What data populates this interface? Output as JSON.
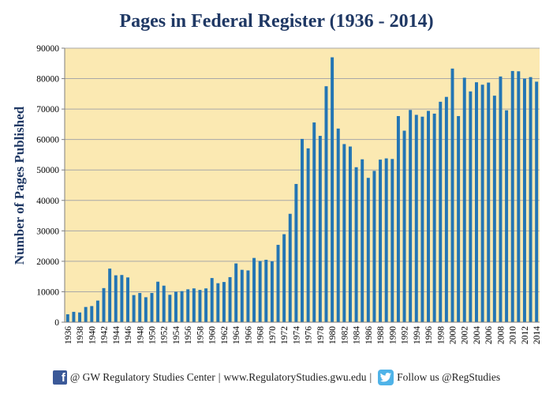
{
  "chart_data": {
    "type": "bar",
    "title": "Pages in Federal Register (1936 - 2014)",
    "xlabel": "",
    "ylabel": "Number of Pages Published",
    "ylim": [
      0,
      90000
    ],
    "yticks": [
      0,
      10000,
      20000,
      30000,
      40000,
      50000,
      60000,
      70000,
      80000,
      90000
    ],
    "categories": [
      1936,
      1937,
      1938,
      1939,
      1940,
      1941,
      1942,
      1943,
      1944,
      1945,
      1946,
      1947,
      1948,
      1949,
      1950,
      1951,
      1952,
      1953,
      1954,
      1955,
      1956,
      1957,
      1958,
      1959,
      1960,
      1961,
      1962,
      1963,
      1964,
      1965,
      1966,
      1967,
      1968,
      1969,
      1970,
      1971,
      1972,
      1973,
      1974,
      1975,
      1976,
      1977,
      1978,
      1979,
      1980,
      1981,
      1982,
      1983,
      1984,
      1985,
      1986,
      1987,
      1988,
      1989,
      1990,
      1991,
      1992,
      1993,
      1994,
      1995,
      1996,
      1997,
      1998,
      1999,
      2000,
      2001,
      2002,
      2003,
      2004,
      2005,
      2006,
      2007,
      2008,
      2009,
      2010,
      2011,
      2012,
      2013,
      2014
    ],
    "xtick_labels": [
      "1936",
      "1938",
      "1940",
      "1942",
      "1944",
      "1946",
      "1948",
      "1950",
      "1952",
      "1954",
      "1956",
      "1958",
      "1960",
      "1962",
      "1964",
      "1966",
      "1968",
      "1970",
      "1972",
      "1974",
      "1976",
      "1978",
      "1980",
      "1982",
      "1984",
      "1986",
      "1988",
      "1990",
      "1992",
      "1994",
      "1996",
      "1998",
      "2000",
      "2002",
      "2004",
      "2006",
      "2008",
      "2010",
      "2012",
      "2014"
    ],
    "values": [
      2600,
      3400,
      3200,
      5000,
      5300,
      7100,
      11200,
      17600,
      15400,
      15500,
      14700,
      8900,
      9600,
      8200,
      9600,
      13300,
      12000,
      9000,
      10000,
      10200,
      10800,
      11100,
      10600,
      11100,
      14500,
      12800,
      13200,
      14800,
      19300,
      17200,
      17000,
      21100,
      20100,
      20500,
      20000,
      25400,
      28900,
      35600,
      45400,
      60200,
      57100,
      65600,
      61200,
      77500,
      87000,
      63600,
      58500,
      57700,
      50900,
      53500,
      47400,
      49700,
      53400,
      53800,
      53600,
      67700,
      62900,
      69700,
      68100,
      67500,
      69400,
      68500,
      72400,
      74000,
      83300,
      67700,
      80300,
      75800,
      78800,
      78000,
      78700,
      74400,
      80700,
      69600,
      82500,
      82400,
      80000,
      80500,
      79000
    ],
    "bar_color": "#2375b4",
    "plot_bg": "#fbe9b2",
    "grid": true
  },
  "footer": {
    "facebook_icon_letter": "f",
    "left_text": "@ GW Regulatory Studies Center",
    "separator": "|",
    "url": "www.RegulatoryStudies.gwu.edu",
    "twitter_text": "Follow us @RegStudies"
  }
}
